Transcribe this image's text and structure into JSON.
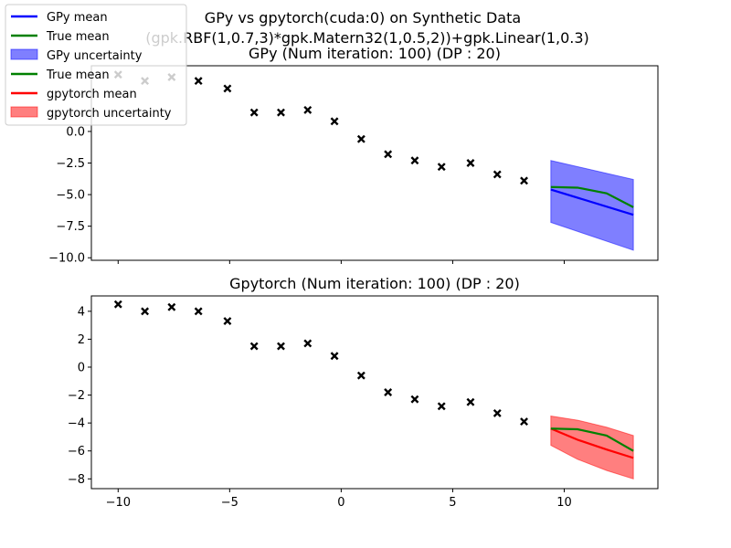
{
  "figure": {
    "suptitle_line1": "GPy vs gpytorch(cuda:0) on Synthetic Data",
    "suptitle_line2": "(gpk.RBF(1,0.7,3)*gpk.Matern32(1,0.5,2))+gpk.Linear(1,0.3)"
  },
  "legend": {
    "placement": "upper-left",
    "entries": [
      {
        "label": "GPy mean",
        "kind": "line",
        "color": "#0000ff"
      },
      {
        "label": "True mean",
        "kind": "line",
        "color": "#008000"
      },
      {
        "label": "GPy uncertainty",
        "kind": "patch",
        "color": "#0000ff"
      },
      {
        "label": "True mean",
        "kind": "line",
        "color": "#008000"
      },
      {
        "label": "gpytorch mean",
        "kind": "line",
        "color": "#ff0000"
      },
      {
        "label": "gpytorch uncertainty",
        "kind": "patch",
        "color": "#ff0000"
      }
    ]
  },
  "chart_data": [
    {
      "type": "line",
      "title": "GPy (Num iteration: 100) (DP : 20)",
      "xlabel": "",
      "ylabel": "",
      "xlim": [
        -11.2,
        14.2
      ],
      "ylim": [
        -10.2,
        5.2
      ],
      "xticks": [
        -10,
        -5,
        0,
        5,
        10
      ],
      "xtick_labels_shown": false,
      "yticks": [
        -10.0,
        -7.5,
        -5.0,
        -2.5,
        0.0
      ],
      "ytick_labels": [
        "−10.0",
        "−7.5",
        "−5.0",
        "−2.5",
        "0.0"
      ],
      "grid": false,
      "train_points": {
        "x": [
          -10.0,
          -8.8,
          -7.6,
          -6.4,
          -5.1,
          -3.9,
          -2.7,
          -1.5,
          -0.3,
          0.9,
          2.1,
          3.3,
          4.5,
          5.8,
          7.0,
          8.2
        ],
        "y": [
          4.5,
          4.0,
          4.3,
          4.0,
          3.4,
          1.5,
          1.5,
          1.7,
          0.8,
          -0.6,
          -1.8,
          -2.3,
          -2.8,
          -2.5,
          -3.4,
          -3.9
        ]
      },
      "series": [
        {
          "name": "GPy mean",
          "color": "#0000ff",
          "x": [
            9.4,
            13.1
          ],
          "y": [
            -4.6,
            -6.6
          ]
        },
        {
          "name": "True mean",
          "color": "#008000",
          "x": [
            9.4,
            10.6,
            11.9,
            13.1
          ],
          "y": [
            -4.4,
            -4.45,
            -4.9,
            -6.0
          ]
        }
      ],
      "band": {
        "name": "GPy uncertainty",
        "color": "#0000ff",
        "x": [
          9.4,
          13.1
        ],
        "upper": [
          -2.3,
          -3.8
        ],
        "lower": [
          -7.2,
          -9.4
        ]
      }
    },
    {
      "type": "line",
      "title": "Gpytorch (Num iteration: 100) (DP : 20)",
      "xlabel": "",
      "ylabel": "",
      "xlim": [
        -11.2,
        14.2
      ],
      "ylim": [
        -8.7,
        5.1
      ],
      "xticks": [
        -10,
        -5,
        0,
        5,
        10
      ],
      "xtick_labels": [
        "−10",
        "−5",
        "0",
        "5",
        "10"
      ],
      "yticks": [
        -8,
        -6,
        -4,
        -2,
        0,
        2,
        4
      ],
      "ytick_labels": [
        "−8",
        "−6",
        "−4",
        "−2",
        "0",
        "2",
        "4"
      ],
      "grid": false,
      "train_points": {
        "x": [
          -10.0,
          -8.8,
          -7.6,
          -6.4,
          -5.1,
          -3.9,
          -2.7,
          -1.5,
          -0.3,
          0.9,
          2.1,
          3.3,
          4.5,
          5.8,
          7.0,
          8.2
        ],
        "y": [
          4.5,
          4.0,
          4.3,
          4.0,
          3.3,
          1.5,
          1.5,
          1.7,
          0.8,
          -0.6,
          -1.8,
          -2.3,
          -2.8,
          -2.5,
          -3.3,
          -3.9
        ]
      },
      "series": [
        {
          "name": "gpytorch mean",
          "color": "#ff0000",
          "x": [
            9.4,
            10.6,
            11.9,
            13.1
          ],
          "y": [
            -4.4,
            -5.2,
            -5.9,
            -6.5
          ]
        },
        {
          "name": "True mean",
          "color": "#008000",
          "x": [
            9.4,
            10.6,
            11.9,
            13.1
          ],
          "y": [
            -4.4,
            -4.45,
            -4.9,
            -6.0
          ]
        }
      ],
      "band": {
        "name": "gpytorch uncertainty",
        "color": "#ff0000",
        "x": [
          9.4,
          10.6,
          11.9,
          13.1
        ],
        "upper": [
          -3.5,
          -3.8,
          -4.3,
          -4.9
        ],
        "lower": [
          -5.6,
          -6.6,
          -7.4,
          -8.0
        ]
      }
    }
  ]
}
